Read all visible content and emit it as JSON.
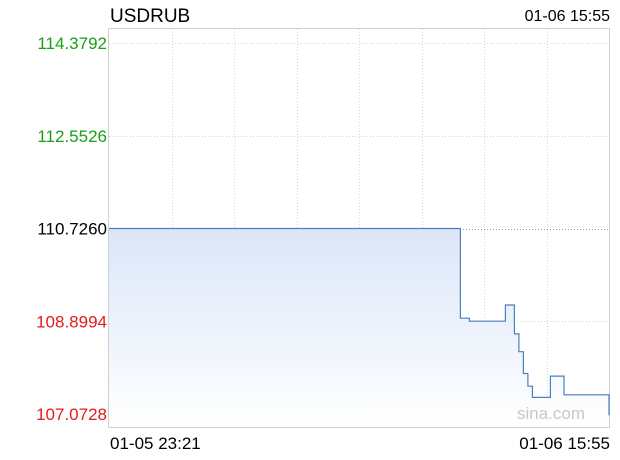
{
  "header": {
    "symbol": "USDRUB",
    "timestamp": "01-06 15:55"
  },
  "watermark": "sina.com",
  "colors": {
    "above_reference": "#1a9e1a",
    "reference": "#000000",
    "below_reference": "#e21b1b",
    "line": "#4a7fc1",
    "fill_top": "#dbe6f8",
    "fill_bottom": "#ffffff",
    "grid": "#d4d4d4"
  },
  "chart_data": {
    "type": "line",
    "title": "USDRUB",
    "reference_value": 110.726,
    "ylim": [
      107.0728,
      114.3792
    ],
    "y_ticks": [
      {
        "value": 114.3792,
        "label": "114.3792",
        "tone": "above_reference"
      },
      {
        "value": 112.5526,
        "label": "112.5526",
        "tone": "above_reference"
      },
      {
        "value": 110.726,
        "label": "110.7260",
        "tone": "reference"
      },
      {
        "value": 108.8994,
        "label": "108.8994",
        "tone": "below_reference"
      },
      {
        "value": 107.0728,
        "label": "107.0728",
        "tone": "below_reference"
      }
    ],
    "x_labels": [
      "01-05 23:21",
      "01-06 15:55"
    ],
    "grid": true,
    "series": [
      {
        "values": [
          110.726,
          110.726,
          110.726,
          110.726,
          110.726,
          110.726,
          110.726,
          110.726,
          110.726,
          110.726,
          110.726,
          110.726,
          110.726,
          110.726,
          110.726,
          110.726,
          110.726,
          110.726,
          110.726,
          110.726,
          110.726,
          110.726,
          110.726,
          110.726,
          110.726,
          110.726,
          110.726,
          110.726,
          110.726,
          110.726,
          110.726,
          110.726,
          110.726,
          110.726,
          110.726,
          110.726,
          110.726,
          110.726,
          110.726,
          110.726,
          110.726,
          110.726,
          110.726,
          110.726,
          110.726,
          110.726,
          110.726,
          110.726,
          110.726,
          110.726,
          110.726,
          110.726,
          110.726,
          110.726,
          110.726,
          110.726,
          110.726,
          110.726,
          110.726,
          110.726,
          110.726,
          110.726,
          110.726,
          110.726,
          110.726,
          110.726,
          110.726,
          110.726,
          110.726,
          110.726,
          110.726,
          110.726,
          110.726,
          110.726,
          110.726,
          110.726,
          110.726,
          110.726,
          108.96,
          108.96,
          108.9,
          108.9,
          108.9,
          108.9,
          108.9,
          108.9,
          108.9,
          108.9,
          109.22,
          109.22,
          108.65,
          108.3,
          107.87,
          107.62,
          107.4,
          107.4,
          107.4,
          107.4,
          107.82,
          107.82,
          107.82,
          107.45,
          107.45,
          107.45,
          107.45,
          107.45,
          107.45,
          107.45,
          107.45,
          107.45,
          107.45,
          107.05
        ]
      }
    ]
  }
}
